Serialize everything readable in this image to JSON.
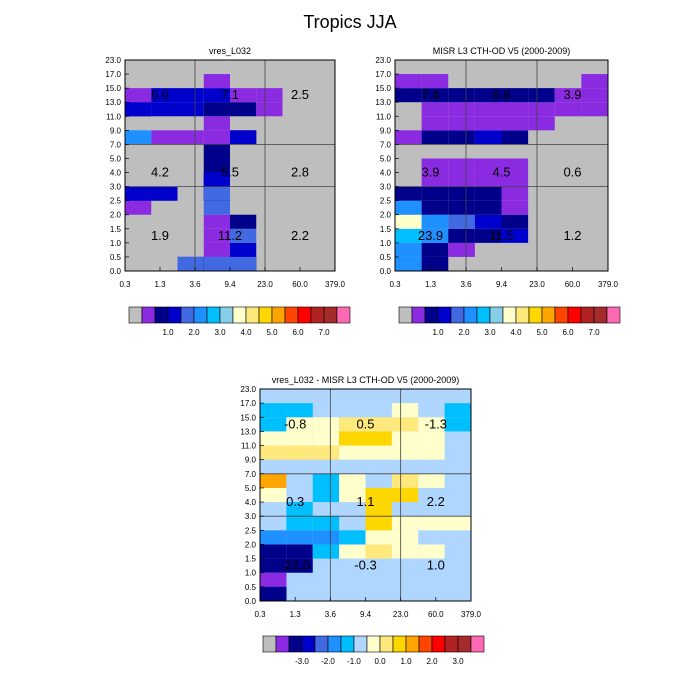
{
  "title": "Tropics JJA",
  "x_tick_labels": [
    "0.3",
    "1.3",
    "3.6",
    "9.4",
    "23.0",
    "60.0",
    "379.0"
  ],
  "y_tick_labels": [
    "0.0",
    "0.5",
    "1.0",
    "1.5",
    "2.0",
    "2.5",
    "3.0",
    "4.0",
    "5.0",
    "7.0",
    "9.0",
    "11.0",
    "13.0",
    "15.0",
    "17.0",
    "23.0"
  ],
  "colors": {
    "background_gray": "#bebebe",
    "frame": "#000000"
  },
  "palettes": {
    "absolute": [
      "#bebebe",
      "#8a2be2",
      "#00008b",
      "#0000cd",
      "#4169e1",
      "#1e90ff",
      "#00bfff",
      "#87ceeb",
      "#ffffcc",
      "#ffe87c",
      "#ffd700",
      "#ffa500",
      "#ff4500",
      "#ff0000",
      "#b22222",
      "#a52a2a",
      "#ff69b4"
    ],
    "difference": [
      "#bebebe",
      "#8a2be2",
      "#00008b",
      "#0000cd",
      "#4169e1",
      "#1e90ff",
      "#00bfff",
      "#aed6ff",
      "#ffffcc",
      "#ffe87c",
      "#ffd700",
      "#ffa500",
      "#ff4500",
      "#ff0000",
      "#b22222",
      "#a52a2a",
      "#ff69b4"
    ]
  },
  "chart_data": [
    {
      "type": "heatmap",
      "title": "vres_L032",
      "xlabel": "",
      "ylabel": "",
      "grid": true,
      "colorbar_labels": [
        "1.0",
        "2.0",
        "3.0",
        "4.0",
        "5.0",
        "6.0",
        "7.0"
      ],
      "colorbar_palette": "absolute",
      "default_fill": 0,
      "cells": [
        [
          0,
          1,
          4,
          1
        ],
        [
          0,
          1,
          5,
          2
        ],
        [
          0,
          1,
          5,
          3
        ],
        [
          1,
          2,
          5,
          2
        ],
        [
          1,
          2,
          5,
          3
        ],
        [
          2,
          3,
          0,
          1
        ],
        [
          2,
          3,
          0,
          2
        ],
        [
          2,
          3,
          0,
          3
        ],
        [
          2,
          3,
          0,
          4
        ],
        [
          3,
          4,
          0,
          1
        ],
        [
          3,
          4,
          0,
          2
        ],
        [
          3,
          4,
          0,
          3
        ],
        [
          3,
          4,
          0,
          4
        ],
        [
          4,
          5,
          0,
          1
        ],
        [
          4,
          5,
          0,
          2
        ],
        [
          4,
          5,
          0,
          4
        ],
        [
          3,
          4,
          1,
          1
        ],
        [
          3,
          4,
          2,
          1
        ],
        [
          3,
          4,
          3,
          1
        ],
        [
          3,
          4,
          4,
          4
        ],
        [
          4,
          5,
          1,
          3
        ],
        [
          4,
          5,
          2,
          4
        ],
        [
          4,
          5,
          3,
          2
        ],
        [
          3,
          4,
          5,
          2
        ],
        [
          3,
          4,
          5,
          3
        ],
        [
          3,
          4,
          5,
          4
        ],
        [
          3,
          4,
          6,
          2
        ],
        [
          3,
          4,
          6,
          3
        ],
        [
          3,
          4,
          7,
          2
        ],
        [
          3,
          4,
          8,
          2
        ],
        [
          0,
          1,
          9,
          5
        ],
        [
          1,
          2,
          9,
          1
        ],
        [
          2,
          3,
          9,
          1
        ],
        [
          3,
          4,
          9,
          1
        ],
        [
          4,
          5,
          9,
          2
        ],
        [
          4,
          5,
          9,
          3
        ],
        [
          3,
          4,
          10,
          1
        ],
        [
          0,
          1,
          11,
          3
        ],
        [
          0,
          1,
          11,
          3
        ],
        [
          1,
          2,
          11,
          3
        ],
        [
          2,
          3,
          11,
          3
        ],
        [
          3,
          4,
          11,
          2
        ],
        [
          4,
          5,
          11,
          2
        ],
        [
          5,
          6,
          11,
          1
        ],
        [
          0,
          1,
          12,
          1
        ],
        [
          1,
          2,
          12,
          3
        ],
        [
          2,
          3,
          12,
          3
        ],
        [
          3,
          4,
          12,
          3
        ],
        [
          4,
          5,
          12,
          1
        ],
        [
          5,
          6,
          12,
          1
        ],
        [
          3,
          4,
          13,
          1
        ]
      ],
      "annotations": [
        {
          "col": 0,
          "row": 12,
          "text": "6.6"
        },
        {
          "col": 1,
          "row": 12,
          "text": "7.1"
        },
        {
          "col": 2,
          "row": 12,
          "text": "2.5"
        },
        {
          "col": 0,
          "row": 7,
          "text": "4.2"
        },
        {
          "col": 1,
          "row": 7,
          "text": "5.5"
        },
        {
          "col": 2,
          "row": 7,
          "text": "2.8"
        },
        {
          "col": 0,
          "row": 3,
          "text": "1.9"
        },
        {
          "col": 1,
          "row": 3,
          "text": "11.2"
        },
        {
          "col": 2,
          "row": 3,
          "text": "2.2"
        }
      ]
    },
    {
      "type": "heatmap",
      "title": "MISR L3 CTH-OD V5 (2000-2009)",
      "xlabel": "",
      "ylabel": "",
      "grid": true,
      "colorbar_labels": [
        "1.0",
        "2.0",
        "3.0",
        "4.0",
        "5.0",
        "6.0",
        "7.0"
      ],
      "colorbar_palette": "absolute",
      "default_fill": 0,
      "cells": [
        [
          0,
          1,
          0,
          5
        ],
        [
          0,
          1,
          1,
          5
        ],
        [
          0,
          1,
          2,
          6
        ],
        [
          0,
          1,
          3,
          8
        ],
        [
          0,
          1,
          4,
          5
        ],
        [
          1,
          2,
          0,
          2
        ],
        [
          1,
          2,
          1,
          2
        ],
        [
          1,
          2,
          2,
          5
        ],
        [
          1,
          2,
          3,
          5
        ],
        [
          1,
          2,
          4,
          2
        ],
        [
          2,
          3,
          1,
          1
        ],
        [
          2,
          3,
          2,
          2
        ],
        [
          2,
          3,
          3,
          4
        ],
        [
          2,
          3,
          4,
          2
        ],
        [
          3,
          4,
          2,
          2
        ],
        [
          3,
          4,
          3,
          3
        ],
        [
          3,
          4,
          4,
          2
        ],
        [
          4,
          5,
          0,
          0
        ],
        [
          4,
          5,
          2,
          3
        ],
        [
          4,
          5,
          3,
          2
        ],
        [
          4,
          5,
          4,
          1
        ],
        [
          0,
          1,
          5,
          2
        ],
        [
          1,
          2,
          5,
          2
        ],
        [
          2,
          3,
          5,
          2
        ],
        [
          3,
          4,
          5,
          2
        ],
        [
          4,
          5,
          5,
          1
        ],
        [
          1,
          2,
          6,
          1
        ],
        [
          2,
          3,
          6,
          1
        ],
        [
          3,
          4,
          6,
          1
        ],
        [
          4,
          5,
          6,
          1
        ],
        [
          1,
          2,
          7,
          1
        ],
        [
          2,
          3,
          7,
          1
        ],
        [
          3,
          4,
          7,
          1
        ],
        [
          4,
          5,
          7,
          1
        ],
        [
          0,
          1,
          9,
          1
        ],
        [
          1,
          2,
          9,
          2
        ],
        [
          2,
          3,
          9,
          2
        ],
        [
          3,
          4,
          9,
          3
        ],
        [
          4,
          5,
          9,
          2
        ],
        [
          1,
          2,
          10,
          1
        ],
        [
          2,
          3,
          10,
          1
        ],
        [
          3,
          4,
          10,
          1
        ],
        [
          4,
          5,
          10,
          1
        ],
        [
          5,
          6,
          10,
          1
        ],
        [
          1,
          2,
          11,
          1
        ],
        [
          2,
          3,
          11,
          1
        ],
        [
          3,
          4,
          11,
          1
        ],
        [
          4,
          5,
          11,
          1
        ],
        [
          5,
          6,
          11,
          1
        ],
        [
          6,
          7,
          11,
          1
        ],
        [
          7,
          8,
          11,
          1
        ],
        [
          0,
          1,
          12,
          2
        ],
        [
          1,
          2,
          12,
          2
        ],
        [
          2,
          3,
          12,
          2
        ],
        [
          3,
          4,
          12,
          2
        ],
        [
          4,
          5,
          12,
          2
        ],
        [
          5,
          6,
          12,
          2
        ],
        [
          6,
          7,
          12,
          1
        ],
        [
          7,
          8,
          12,
          1
        ],
        [
          0,
          1,
          13,
          1
        ],
        [
          1,
          2,
          13,
          1
        ],
        [
          7,
          8,
          13,
          1
        ]
      ],
      "annotations": [
        {
          "col": 0,
          "row": 12,
          "text": "7.4"
        },
        {
          "col": 1,
          "row": 12,
          "text": "6.6"
        },
        {
          "col": 2,
          "row": 12,
          "text": "3.9"
        },
        {
          "col": 0,
          "row": 7,
          "text": "3.9"
        },
        {
          "col": 1,
          "row": 7,
          "text": "4.5"
        },
        {
          "col": 2,
          "row": 7,
          "text": "0.6"
        },
        {
          "col": 0,
          "row": 3,
          "text": "23.9"
        },
        {
          "col": 1,
          "row": 3,
          "text": "11.5"
        },
        {
          "col": 2,
          "row": 3,
          "text": "1.2"
        }
      ]
    },
    {
      "type": "heatmap",
      "title": "vres_L032 - MISR L3 CTH-OD V5 (2000-2009)",
      "xlabel": "",
      "ylabel": "",
      "grid": true,
      "colorbar_labels": [
        "-3.0",
        "-2.0",
        "-1.0",
        "0.0",
        "1.0",
        "2.0",
        "3.0"
      ],
      "colorbar_palette": "difference",
      "default_fill": 7,
      "cells": [
        [
          0,
          1,
          0,
          2
        ],
        [
          0,
          1,
          1,
          1
        ],
        [
          1,
          2,
          1,
          7
        ],
        [
          0,
          1,
          2,
          2
        ],
        [
          0,
          1,
          3,
          2
        ],
        [
          1,
          2,
          3,
          2
        ],
        [
          1,
          2,
          2,
          2
        ],
        [
          2,
          3,
          3,
          6
        ],
        [
          3,
          4,
          3,
          8
        ],
        [
          4,
          5,
          3,
          9
        ],
        [
          5,
          6,
          3,
          8
        ],
        [
          6,
          7,
          3,
          8
        ],
        [
          0,
          1,
          4,
          5
        ],
        [
          1,
          2,
          4,
          5
        ],
        [
          2,
          3,
          4,
          5
        ],
        [
          3,
          4,
          4,
          6
        ],
        [
          4,
          5,
          4,
          8
        ],
        [
          5,
          6,
          4,
          8
        ],
        [
          1,
          2,
          5,
          6
        ],
        [
          2,
          3,
          5,
          6
        ],
        [
          4,
          5,
          5,
          10
        ],
        [
          5,
          6,
          5,
          8
        ],
        [
          6,
          7,
          5,
          8
        ],
        [
          7,
          8,
          5,
          8
        ],
        [
          1,
          2,
          6,
          6
        ],
        [
          4,
          5,
          6,
          10
        ],
        [
          0,
          1,
          7,
          8
        ],
        [
          2,
          3,
          7,
          6
        ],
        [
          3,
          4,
          7,
          8
        ],
        [
          4,
          5,
          7,
          10
        ],
        [
          5,
          6,
          7,
          10
        ],
        [
          0,
          1,
          8,
          11
        ],
        [
          2,
          3,
          8,
          6
        ],
        [
          3,
          4,
          8,
          8
        ],
        [
          5,
          6,
          8,
          9
        ],
        [
          6,
          7,
          8,
          8
        ],
        [
          0,
          1,
          10,
          9
        ],
        [
          1,
          2,
          10,
          9
        ],
        [
          2,
          3,
          10,
          9
        ],
        [
          3,
          4,
          10,
          8
        ],
        [
          4,
          5,
          10,
          8
        ],
        [
          5,
          6,
          10,
          8
        ],
        [
          6,
          7,
          10,
          8
        ],
        [
          0,
          1,
          11,
          8
        ],
        [
          1,
          2,
          11,
          8
        ],
        [
          2,
          3,
          11,
          8
        ],
        [
          3,
          4,
          11,
          10
        ],
        [
          4,
          5,
          11,
          10
        ],
        [
          5,
          6,
          11,
          8
        ],
        [
          6,
          7,
          11,
          8
        ],
        [
          0,
          1,
          12,
          6
        ],
        [
          1,
          2,
          12,
          8
        ],
        [
          2,
          3,
          12,
          8
        ],
        [
          3,
          4,
          12,
          9
        ],
        [
          4,
          5,
          12,
          9
        ],
        [
          5,
          6,
          12,
          9
        ],
        [
          6,
          7,
          12,
          8
        ],
        [
          7,
          8,
          12,
          6
        ],
        [
          0,
          1,
          13,
          6
        ],
        [
          1,
          2,
          13,
          6
        ],
        [
          5,
          6,
          13,
          8
        ],
        [
          7,
          8,
          13,
          6
        ],
        [
          0,
          1,
          0,
          2
        ],
        [
          0,
          1,
          1,
          1
        ],
        [
          0,
          1,
          0,
          2
        ]
      ],
      "annotations": [
        {
          "col": 0,
          "row": 12,
          "text": "-0.8"
        },
        {
          "col": 1,
          "row": 12,
          "text": "0.5"
        },
        {
          "col": 2,
          "row": 12,
          "text": "-1.3"
        },
        {
          "col": 0,
          "row": 7,
          "text": "0.3"
        },
        {
          "col": 1,
          "row": 7,
          "text": "1.1"
        },
        {
          "col": 2,
          "row": 7,
          "text": "2.2"
        },
        {
          "col": 0,
          "row": 3,
          "text": "-22.0"
        },
        {
          "col": 1,
          "row": 3,
          "text": "-0.3"
        },
        {
          "col": 2,
          "row": 3,
          "text": "1.0"
        }
      ]
    }
  ]
}
